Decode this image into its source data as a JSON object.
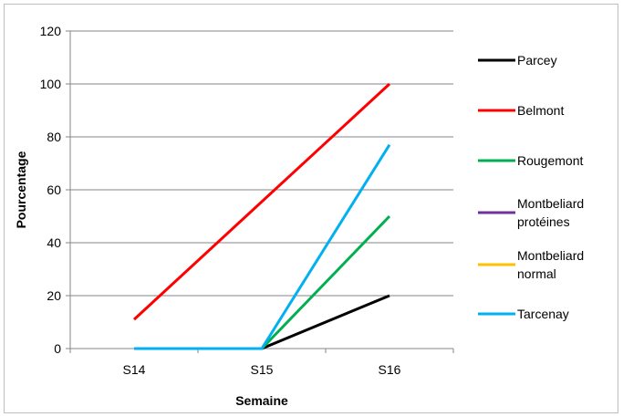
{
  "chart_data": {
    "type": "line",
    "xlabel": "Semaine",
    "ylabel": "Pourcentage",
    "categories": [
      "S14",
      "S15",
      "S16"
    ],
    "ylim": [
      0,
      120
    ],
    "yticks": [
      0,
      20,
      40,
      60,
      80,
      100,
      120
    ],
    "grid": true,
    "legend_position": "right",
    "series": [
      {
        "name": "Parcey",
        "label_lines": [
          "Parcey"
        ],
        "color": "#000000",
        "values": [
          null,
          0,
          20
        ]
      },
      {
        "name": "Belmont",
        "label_lines": [
          "Belmont"
        ],
        "color": "#ff0000",
        "values": [
          11,
          null,
          100
        ]
      },
      {
        "name": "Rougemont",
        "label_lines": [
          "Rougemont"
        ],
        "color": "#00b050",
        "values": [
          null,
          0,
          50
        ]
      },
      {
        "name": "Montbeliard protéines",
        "label_lines": [
          "Montbeliard",
          "protéines"
        ],
        "color": "#7030a0",
        "values": [
          null,
          null,
          null
        ]
      },
      {
        "name": "Montbeliard normal",
        "label_lines": [
          "Montbeliard",
          "normal"
        ],
        "color": "#ffc000",
        "values": [
          null,
          null,
          null
        ]
      },
      {
        "name": "Tarcenay",
        "label_lines": [
          "Tarcenay"
        ],
        "color": "#00b0f0",
        "values": [
          0,
          0,
          77
        ]
      }
    ]
  }
}
